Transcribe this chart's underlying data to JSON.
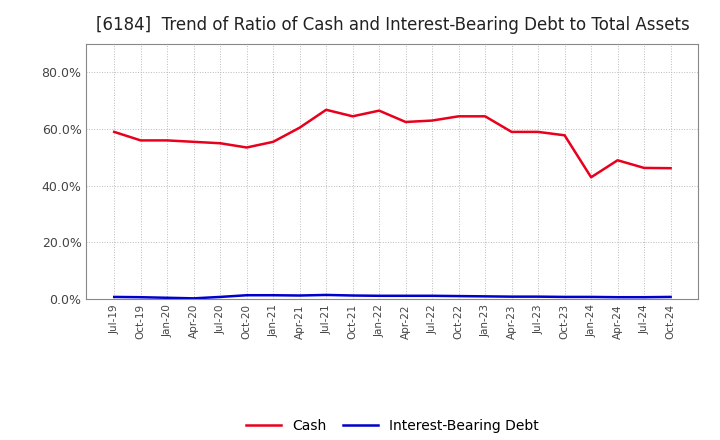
{
  "title": "[6184]  Trend of Ratio of Cash and Interest-Bearing Debt to Total Assets",
  "x_labels": [
    "Jul-19",
    "Oct-19",
    "Jan-20",
    "Apr-20",
    "Jul-20",
    "Oct-20",
    "Jan-21",
    "Apr-21",
    "Jul-21",
    "Oct-21",
    "Jan-22",
    "Apr-22",
    "Jul-22",
    "Oct-22",
    "Jan-23",
    "Apr-23",
    "Jul-23",
    "Oct-23",
    "Jan-24",
    "Apr-24",
    "Jul-24",
    "Oct-24"
  ],
  "cash": [
    0.59,
    0.56,
    0.56,
    0.555,
    0.55,
    0.535,
    0.555,
    0.605,
    0.668,
    0.645,
    0.665,
    0.625,
    0.63,
    0.645,
    0.645,
    0.59,
    0.59,
    0.578,
    0.43,
    0.49,
    0.463,
    0.462
  ],
  "interest_bearing_debt": [
    0.008,
    0.007,
    0.005,
    0.003,
    0.008,
    0.014,
    0.014,
    0.013,
    0.015,
    0.013,
    0.012,
    0.012,
    0.012,
    0.011,
    0.01,
    0.009,
    0.009,
    0.008,
    0.008,
    0.007,
    0.007,
    0.008
  ],
  "cash_color": "#e8001c",
  "debt_color": "#0000cc",
  "ylim_min": 0.0,
  "ylim_max": 0.9,
  "yticks": [
    0.0,
    0.2,
    0.4,
    0.6,
    0.8
  ],
  "background_color": "#ffffff",
  "grid_color": "#bbbbbb",
  "title_fontsize": 12,
  "title_color": "#222222",
  "tick_label_color": "#444444",
  "legend_entries": [
    "Cash",
    "Interest-Bearing Debt"
  ],
  "line_width": 1.8
}
